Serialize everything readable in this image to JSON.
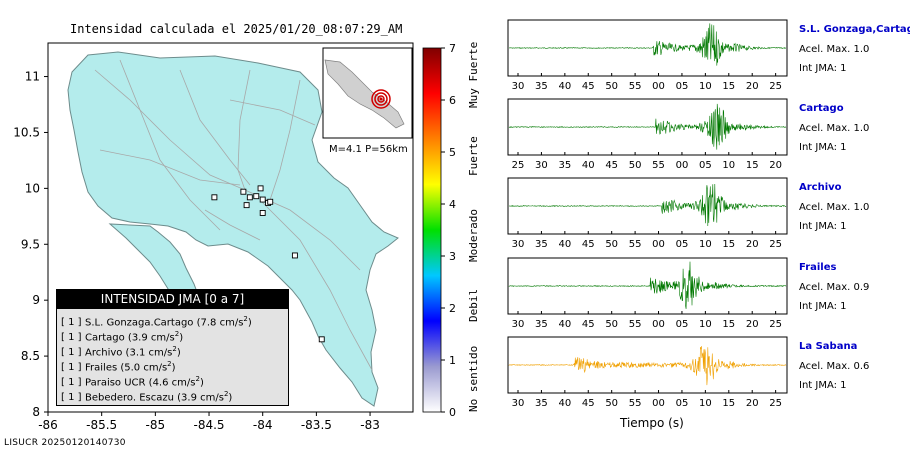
{
  "header": {
    "title": "Intensidad calculada el 2025/01/20_08:07:29_AM",
    "footer_id": "LISUCR 20250120140730"
  },
  "inset": {
    "magnitude_label": "M=4.1 P=56km"
  },
  "colorbar": {
    "ticks": [
      "0",
      "1",
      "2",
      "3",
      "4",
      "5",
      "6",
      "7"
    ],
    "bands": [
      "No sentido",
      "Debil",
      "Moderado",
      "Fuerte",
      "Muy Fuerte"
    ],
    "colors": [
      "#ffffff",
      "#9a9ad0",
      "#0000ff",
      "#00c8ff",
      "#00e000",
      "#ffff00",
      "#ff8000",
      "#ff0000",
      "#800000"
    ]
  },
  "legend": {
    "title": "INTENSIDAD JMA [0 a 7]",
    "rows": [
      {
        "bracket": "[ 1 ]",
        "text": "S.L. Gonzaga.Cartago (7.8 cm/s",
        "sup": "2",
        "close": ")"
      },
      {
        "bracket": "[ 1 ]",
        "text": "Cartago (3.9 cm/s",
        "sup": "2",
        "close": ")"
      },
      {
        "bracket": "[ 1 ]",
        "text": "Archivo (3.1 cm/s",
        "sup": "2",
        "close": ")"
      },
      {
        "bracket": "[ 1 ]",
        "text": "Frailes (5.0 cm/s",
        "sup": "2",
        "close": ")"
      },
      {
        "bracket": "[ 1 ]",
        "text": "Paraiso UCR (4.6 cm/s",
        "sup": "2",
        "close": ")"
      },
      {
        "bracket": "[ 1 ]",
        "text": "Bebedero. Escazu (3.9 cm/s",
        "sup": "2",
        "close": ")"
      }
    ]
  },
  "waveform_axis_label": "Tiempo (s)",
  "traces": [
    {
      "name": "S.L. Gonzaga,Cartago",
      "accel": "Acel. Max. 1.0",
      "jma": "Int JMA: 1",
      "ticks": [
        "30",
        "35",
        "40",
        "45",
        "50",
        "55",
        "00",
        "05",
        "10",
        "15",
        "20",
        "25"
      ],
      "color": "#007800",
      "onset": 0.52,
      "peak": 0.73
    },
    {
      "name": "Cartago",
      "accel": "Acel. Max. 1.0",
      "jma": "Int JMA: 1",
      "ticks": [
        "25",
        "30",
        "35",
        "40",
        "45",
        "50",
        "55",
        "00",
        "05",
        "10",
        "15",
        "20"
      ],
      "color": "#007800",
      "onset": 0.53,
      "peak": 0.75
    },
    {
      "name": "Archivo",
      "accel": "Acel. Max. 1.0",
      "jma": "Int JMA: 1",
      "ticks": [
        "30",
        "35",
        "40",
        "45",
        "50",
        "55",
        "00",
        "05",
        "10",
        "15",
        "20",
        "25"
      ],
      "color": "#007800",
      "onset": 0.55,
      "peak": 0.73
    },
    {
      "name": "Frailes",
      "accel": "Acel. Max. 0.9",
      "jma": "Int JMA: 1",
      "ticks": [
        "30",
        "35",
        "40",
        "45",
        "50",
        "55",
        "00",
        "05",
        "10",
        "15",
        "20",
        "25"
      ],
      "color": "#007800",
      "onset": 0.51,
      "peak": 0.65
    },
    {
      "name": "La Sabana",
      "accel": "Acel. Max. 0.6",
      "jma": "Int JMA: 1",
      "ticks": [
        "30",
        "35",
        "40",
        "45",
        "50",
        "55",
        "00",
        "05",
        "10",
        "15",
        "20",
        "25"
      ],
      "color": "#f0a000",
      "onset": 0.25,
      "peak": 0.71
    }
  ],
  "chart_data": {
    "type": "scatter",
    "title": "Intensidad calculada el 2025/01/20_08:07:29_AM",
    "xlabel": "",
    "ylabel": "",
    "x_ticks": [
      "-86",
      "-85.5",
      "-85",
      "-84.5",
      "-84",
      "-83.5",
      "-83"
    ],
    "y_ticks": [
      "8",
      "8.5",
      "9",
      "9.5",
      "10",
      "10.5",
      "11"
    ],
    "xlim": [
      -86,
      -82.6
    ],
    "ylim": [
      8,
      11.3
    ],
    "grid": false,
    "legend": "bottom-left",
    "stations": [
      {
        "lon": -84.0,
        "lat": 9.9
      },
      {
        "lon": -84.06,
        "lat": 9.93
      },
      {
        "lon": -84.12,
        "lat": 9.92
      },
      {
        "lon": -84.18,
        "lat": 9.97
      },
      {
        "lon": -83.95,
        "lat": 9.87
      },
      {
        "lon": -83.93,
        "lat": 9.88
      },
      {
        "lon": -84.02,
        "lat": 10.0
      },
      {
        "lon": -84.15,
        "lat": 9.85
      },
      {
        "lon": -84.0,
        "lat": 9.78
      },
      {
        "lon": -84.45,
        "lat": 9.92
      },
      {
        "lon": -83.7,
        "lat": 9.4
      },
      {
        "lon": -83.45,
        "lat": 8.65
      }
    ]
  }
}
